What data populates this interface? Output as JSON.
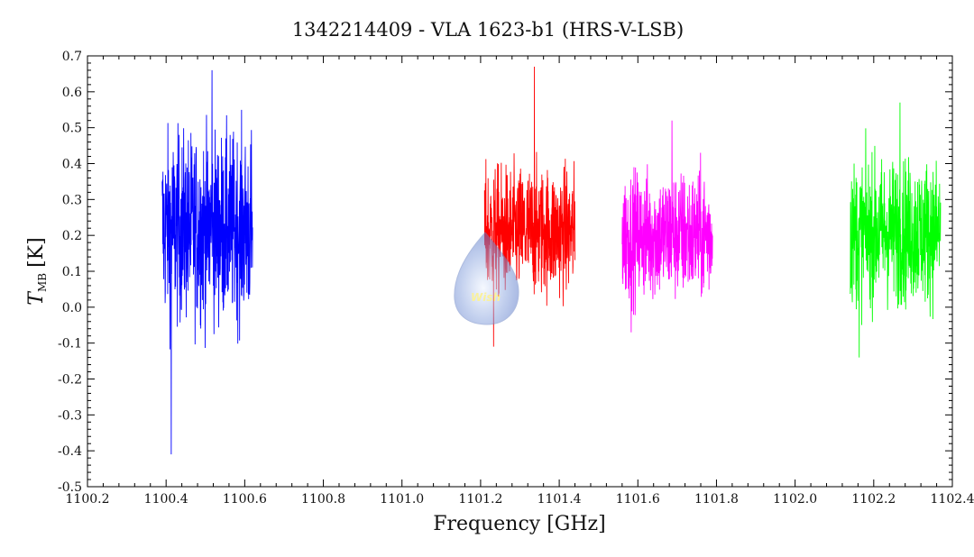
{
  "chart_data": {
    "type": "line",
    "title": "1342214409 - VLA 1623-b1 (HRS-V-LSB)",
    "xlabel": "Frequency [GHz]",
    "ylabel_main": "T",
    "ylabel_sub": "MB",
    "ylabel_unit": "[K]",
    "xlim": [
      1100.2,
      1102.4
    ],
    "ylim": [
      -0.5,
      0.7
    ],
    "x_ticks": [
      "1100.2",
      "1100.4",
      "1100.6",
      "1100.8",
      "1101.0",
      "1101.2",
      "1101.4",
      "1101.6",
      "1101.8",
      "1102.0",
      "1102.2",
      "1102.4"
    ],
    "y_ticks": [
      "-0.5",
      "-0.4",
      "-0.3",
      "-0.2",
      "-0.1",
      "0.0",
      "0.1",
      "0.2",
      "0.3",
      "0.4",
      "0.5",
      "0.6",
      "0.7"
    ],
    "grid": false,
    "series": [
      {
        "x_start": 1100.39,
        "x_end": 1100.62,
        "mean": 0.22,
        "noise": 0.13,
        "max": 0.66,
        "min": -0.41,
        "color": "#0000ff"
      },
      {
        "x_start": 1101.21,
        "x_end": 1101.44,
        "mean": 0.21,
        "noise": 0.09,
        "max": 0.67,
        "min": -0.11,
        "color": "#ff0000"
      },
      {
        "x_start": 1101.56,
        "x_end": 1101.79,
        "mean": 0.2,
        "noise": 0.09,
        "max": 0.52,
        "min": -0.07,
        "color": "#ff00ff"
      },
      {
        "x_start": 1102.14,
        "x_end": 1102.37,
        "mean": 0.21,
        "noise": 0.1,
        "max": 0.57,
        "min": -0.14,
        "color": "#00ff00"
      }
    ]
  },
  "watermark": {
    "text": "Wish"
  }
}
